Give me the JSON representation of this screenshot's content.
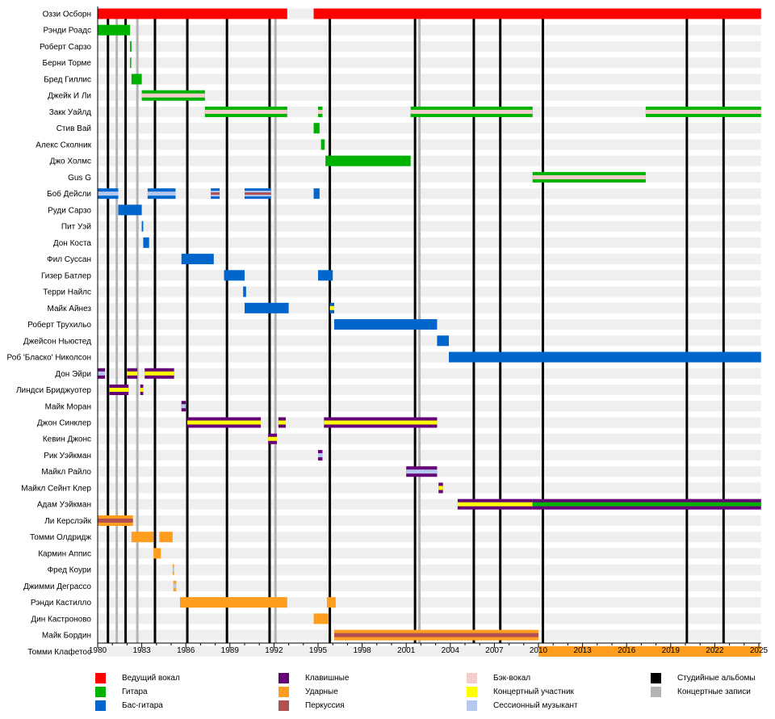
{
  "chart_data": {
    "type": "timeline",
    "title": "",
    "xlabel": "",
    "ylabel": "",
    "xlim": [
      1980,
      2025.15
    ],
    "x_ticks": [
      1980,
      1983,
      1986,
      1989,
      1992,
      1995,
      1998,
      2001,
      2004,
      2007,
      2010,
      2013,
      2016,
      2019,
      2022,
      2025
    ],
    "members": [
      {
        "name": "Оззи Осборн",
        "bars": [
          {
            "role": "vocals",
            "from": 1980,
            "to": 1992.9
          },
          {
            "role": "vocals",
            "from": 1994.7,
            "to": 2025.15
          }
        ]
      },
      {
        "name": "Рэнди Роадс",
        "bars": [
          {
            "role": "guitar",
            "from": 1980,
            "to": 1982.2
          }
        ]
      },
      {
        "name": "Роберт Сарзо",
        "bars": [
          {
            "role": "guitar",
            "from": 1982.2,
            "to": 1982.3
          }
        ]
      },
      {
        "name": "Берни Торме",
        "bars": [
          {
            "role": "guitar",
            "from": 1982.2,
            "to": 1982.26
          }
        ]
      },
      {
        "name": "Бред Гиллис",
        "bars": [
          {
            "role": "guitar",
            "from": 1982.3,
            "to": 1983.0
          }
        ]
      },
      {
        "name": "Джейк И Ли",
        "bars": [
          {
            "role": "guitar",
            "from": 1983.0,
            "to": 1987.3,
            "stripe": "backing"
          }
        ]
      },
      {
        "name": "Закк Уайлд",
        "bars": [
          {
            "role": "guitar",
            "from": 1987.3,
            "to": 1992.9,
            "stripe": "backing"
          },
          {
            "role": "guitar",
            "from": 1995.0,
            "to": 1995.3,
            "stripe": "backing"
          },
          {
            "role": "guitar",
            "from": 2001.3,
            "to": 2009.6,
            "stripe": "backing"
          },
          {
            "role": "guitar",
            "from": 2017.3,
            "to": 2025.15,
            "stripe": "backing"
          }
        ]
      },
      {
        "name": "Стив Вай",
        "bars": [
          {
            "role": "guitar",
            "from": 1994.7,
            "to": 1995.1
          }
        ]
      },
      {
        "name": "Алекс Сколник",
        "bars": [
          {
            "role": "guitar",
            "from": 1995.2,
            "to": 1995.45
          }
        ]
      },
      {
        "name": "Джо Холмс",
        "bars": [
          {
            "role": "guitar",
            "from": 1995.5,
            "to": 2001.3
          }
        ]
      },
      {
        "name": "Gus G",
        "bars": [
          {
            "role": "guitar",
            "from": 2009.6,
            "to": 2017.3,
            "stripe": "backing"
          }
        ]
      },
      {
        "name": "Боб Дейсли",
        "bars": [
          {
            "role": "bass",
            "from": 1980,
            "to": 1981.4,
            "stripe": "session"
          },
          {
            "role": "bass",
            "from": 1983.4,
            "to": 1985.3,
            "stripe": "session"
          },
          {
            "role": "bass",
            "from": 1987.7,
            "to": 1988.3,
            "stripe": "percussion_session"
          },
          {
            "role": "bass",
            "from": 1990.0,
            "to": 1991.8,
            "stripe": "percussion_session"
          },
          {
            "role": "bass",
            "from": 1994.7,
            "to": 1995.1
          }
        ]
      },
      {
        "name": "Руди Сарзо",
        "bars": [
          {
            "role": "bass",
            "from": 1981.4,
            "to": 1983.0
          }
        ]
      },
      {
        "name": "Пит Уэй",
        "bars": [
          {
            "role": "bass",
            "from": 1983.0,
            "to": 1983.1
          }
        ]
      },
      {
        "name": "Дон Коста",
        "bars": [
          {
            "role": "bass",
            "from": 1983.1,
            "to": 1983.5
          }
        ]
      },
      {
        "name": "Фил Суссан",
        "bars": [
          {
            "role": "bass",
            "from": 1985.7,
            "to": 1987.9
          }
        ]
      },
      {
        "name": "Гизер Батлер",
        "bars": [
          {
            "role": "bass",
            "from": 1988.6,
            "to": 1990.0
          },
          {
            "role": "bass",
            "from": 1995.0,
            "to": 1996.0
          }
        ]
      },
      {
        "name": "Терри Найлс",
        "bars": [
          {
            "role": "bass",
            "from": 1989.9,
            "to": 1990.1
          }
        ]
      },
      {
        "name": "Майк Айнез",
        "bars": [
          {
            "role": "bass",
            "from": 1990.0,
            "to": 1993.0
          },
          {
            "role": "bass",
            "from": 1995.8,
            "to": 1996.1,
            "stripe": "touring"
          }
        ]
      },
      {
        "name": "Роберт Трухильо",
        "bars": [
          {
            "role": "bass",
            "from": 1996.1,
            "to": 2003.1
          }
        ]
      },
      {
        "name": "Джейсон Ньюстед",
        "bars": [
          {
            "role": "bass",
            "from": 2003.1,
            "to": 2003.9
          }
        ]
      },
      {
        "name": "Роб 'Бласко' Николсон",
        "bars": [
          {
            "role": "bass",
            "from": 2003.9,
            "to": 2025.15
          }
        ]
      },
      {
        "name": "Дон Эйри",
        "bars": [
          {
            "role": "keyboards",
            "from": 1980,
            "to": 1980.5,
            "stripe": "session"
          },
          {
            "role": "keyboards",
            "from": 1982.0,
            "to": 1982.7,
            "stripe": "touring"
          },
          {
            "role": "keyboards",
            "from": 1983.2,
            "to": 1985.2,
            "stripe": "touring"
          }
        ]
      },
      {
        "name": "Линдси Бриджуотер",
        "bars": [
          {
            "role": "keyboards",
            "from": 1980.8,
            "to": 1982.1,
            "stripe": "touring"
          },
          {
            "role": "keyboards",
            "from": 1982.9,
            "to": 1983.1,
            "stripe": "touring"
          }
        ]
      },
      {
        "name": "Майк Моран",
        "bars": [
          {
            "role": "keyboards",
            "from": 1985.7,
            "to": 1986.0,
            "stripe": "session"
          }
        ]
      },
      {
        "name": "Джон Синклер",
        "bars": [
          {
            "role": "keyboards",
            "from": 1986.1,
            "to": 1991.1,
            "stripe": "touring"
          },
          {
            "role": "keyboards",
            "from": 1992.3,
            "to": 1992.8,
            "stripe": "touring"
          },
          {
            "role": "keyboards",
            "from": 1995.4,
            "to": 2003.1,
            "stripe": "touring"
          }
        ]
      },
      {
        "name": "Кевин Джонс",
        "bars": [
          {
            "role": "keyboards",
            "from": 1991.6,
            "to": 1992.2,
            "stripe": "touring"
          }
        ]
      },
      {
        "name": "Рик Уэйкман",
        "bars": [
          {
            "role": "keyboards",
            "from": 1995.0,
            "to": 1995.3,
            "stripe": "session"
          }
        ]
      },
      {
        "name": "Майкл Райло",
        "bars": [
          {
            "role": "keyboards",
            "from": 2001.0,
            "to": 2003.1,
            "stripe": "session"
          }
        ]
      },
      {
        "name": "Майкл Сейнт Клер",
        "bars": [
          {
            "role": "keyboards",
            "from": 2003.2,
            "to": 2003.5,
            "stripe": "touring"
          }
        ]
      },
      {
        "name": "Адам Уэйкман",
        "bars": [
          {
            "role": "keyboards",
            "from": 2004.5,
            "to": 2009.6,
            "stripe": "touring"
          },
          {
            "role": "keyboards",
            "from": 2009.6,
            "to": 2025.15,
            "stripe": "guitar"
          }
        ]
      },
      {
        "name": "Ли Керслэйк",
        "bars": [
          {
            "role": "drums",
            "from": 1980,
            "to": 1982.4,
            "stripe": "percussion"
          }
        ]
      },
      {
        "name": "Томми Олдридж",
        "bars": [
          {
            "role": "drums",
            "from": 1982.3,
            "to": 1983.8
          },
          {
            "role": "drums",
            "from": 1984.2,
            "to": 1985.1
          }
        ]
      },
      {
        "name": "Кармин Аппис",
        "bars": [
          {
            "role": "drums",
            "from": 1983.8,
            "to": 1984.3
          }
        ]
      },
      {
        "name": "Фред Коури",
        "bars": [
          {
            "role": "drums",
            "from": 1985.1,
            "to": 1985.2,
            "stripe": "session"
          }
        ]
      },
      {
        "name": "Джимми Деграссо",
        "bars": [
          {
            "role": "drums",
            "from": 1985.15,
            "to": 1985.35,
            "stripe": "session"
          }
        ]
      },
      {
        "name": "Рэнди Кастилло",
        "bars": [
          {
            "role": "drums",
            "from": 1985.6,
            "to": 1992.9
          },
          {
            "role": "drums",
            "from": 1995.6,
            "to": 1996.2
          }
        ]
      },
      {
        "name": "Дин Кастроново",
        "bars": [
          {
            "role": "drums",
            "from": 1994.7,
            "to": 1995.7
          }
        ]
      },
      {
        "name": "Майк Бордин",
        "bars": [
          {
            "role": "drums",
            "from": 1996.1,
            "to": 2010.0,
            "stripe": "percussion"
          }
        ]
      },
      {
        "name": "Томми Клафетос",
        "bars": [
          {
            "role": "drums",
            "from": 2010.0,
            "to": 2025.15
          }
        ]
      }
    ],
    "studio_albums": [
      1980.7,
      1981.9,
      1983.9,
      1986.1,
      1988.8,
      1991.7,
      1995.8,
      2001.6,
      2005.6,
      2007.4,
      2010.3,
      2020.1,
      2022.6
    ],
    "live_albums": [
      1981.3,
      1982.7,
      1992.1,
      2001.9
    ],
    "grid": true,
    "legend_position": "bottom"
  },
  "legend": [
    {
      "key": "vocals",
      "label": "Ведущий вокал",
      "color": "#ff0000"
    },
    {
      "key": "guitar",
      "label": "Гитара",
      "color": "#00b200"
    },
    {
      "key": "bass",
      "label": "Бас-гитара",
      "color": "#0066cc"
    },
    {
      "key": "keyboards",
      "label": "Клавишные",
      "color": "#660077"
    },
    {
      "key": "drums",
      "label": "Ударные",
      "color": "#ff9e1e"
    },
    {
      "key": "percussion",
      "label": "Перкуссия",
      "color": "#b05050"
    },
    {
      "key": "backing",
      "label": "Бэк-вокал",
      "color": "#f4cccc"
    },
    {
      "key": "touring",
      "label": "Концертный участник",
      "color": "#ffff00"
    },
    {
      "key": "session",
      "label": "Сессионный музыкант",
      "color": "#b4c8f0"
    },
    {
      "key": "studio",
      "label": "Студийные альбомы",
      "color": "#000000"
    },
    {
      "key": "live",
      "label": "Концертные записи",
      "color": "#b4b4b4"
    }
  ]
}
